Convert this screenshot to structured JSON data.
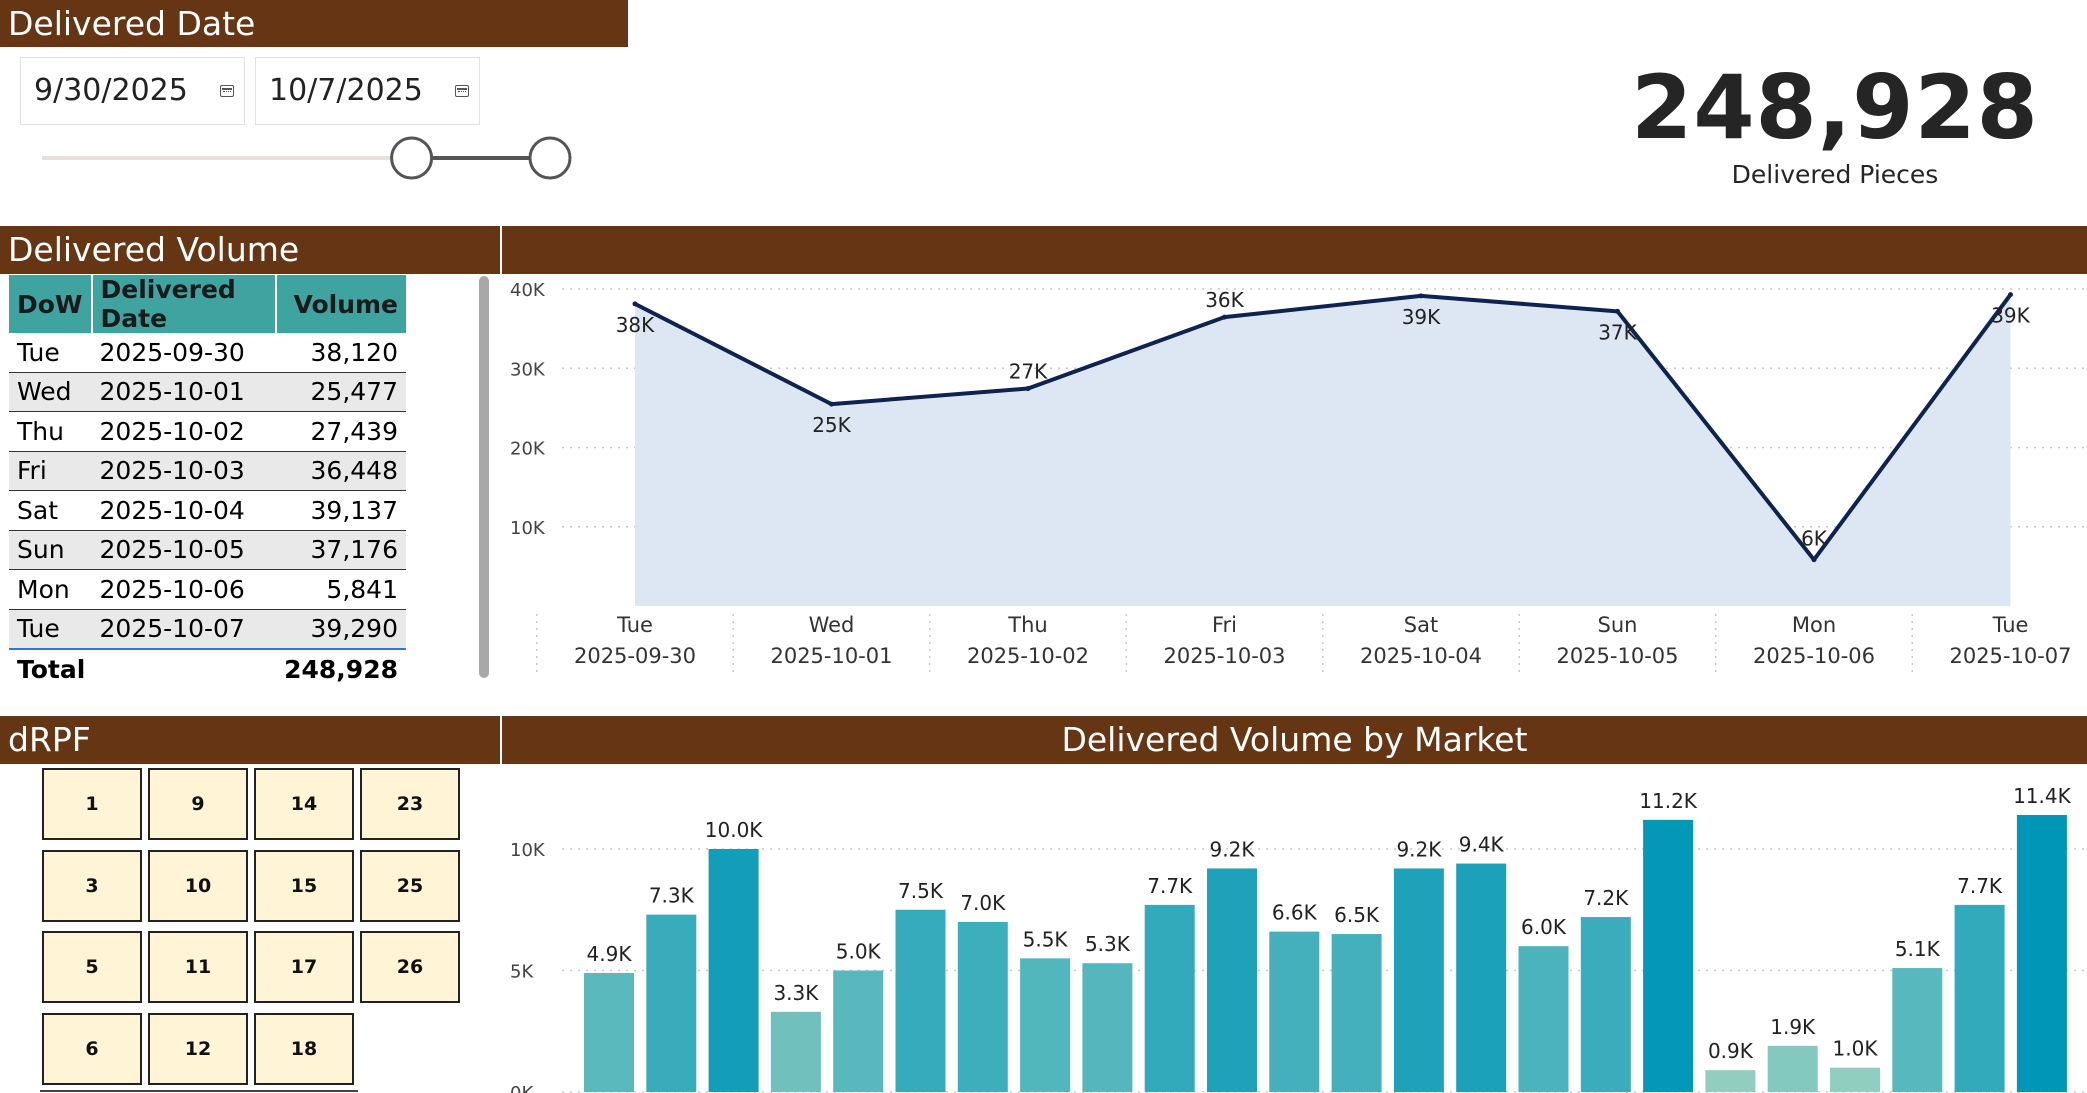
{
  "filter": {
    "title": "Delivered Date",
    "start_date": "9/30/2025",
    "end_date": "10/7/2025",
    "slider_start_fraction": 0.7,
    "slider_end_fraction": 1.0
  },
  "kpi": {
    "value": "248,928",
    "label": "Delivered Pieces"
  },
  "volume_section": {
    "title": "Delivered Volume"
  },
  "table": {
    "columns": [
      "DoW",
      "Delivered Date",
      "Volume"
    ],
    "rows": [
      [
        "Tue",
        "2025-09-30",
        "38,120"
      ],
      [
        "Wed",
        "2025-10-01",
        "25,477"
      ],
      [
        "Thu",
        "2025-10-02",
        "27,439"
      ],
      [
        "Fri",
        "2025-10-03",
        "36,448"
      ],
      [
        "Sat",
        "2025-10-04",
        "39,137"
      ],
      [
        "Sun",
        "2025-10-05",
        "37,176"
      ],
      [
        "Mon",
        "2025-10-06",
        "5,841"
      ],
      [
        "Tue",
        "2025-10-07",
        "39,290"
      ]
    ],
    "total_label": "Total",
    "total_value": "248,928"
  },
  "drpf": {
    "title": "dRPF",
    "buttons": [
      "1",
      "9",
      "14",
      "23",
      "3",
      "10",
      "15",
      "25",
      "5",
      "11",
      "17",
      "26",
      "6",
      "12",
      "18"
    ]
  },
  "market_section": {
    "title": "Delivered Volume by Market"
  },
  "colors": {
    "header_bg": "#653514",
    "line": "#0f2350",
    "area": "#dde7f3",
    "table_header": "#3fa3a0",
    "button_fill": "#fff4d6"
  },
  "chart_data": [
    {
      "type": "area",
      "categories": [
        "Tue",
        "Wed",
        "Thu",
        "Fri",
        "Sat",
        "Sun",
        "Mon",
        "Tue"
      ],
      "category_dates": [
        "2025-09-30",
        "2025-10-01",
        "2025-10-02",
        "2025-10-03",
        "2025-10-04",
        "2025-10-05",
        "2025-10-06",
        "2025-10-07"
      ],
      "values": [
        38120,
        25477,
        27439,
        36448,
        39137,
        37176,
        5841,
        39290
      ],
      "data_labels": [
        "38K",
        "25K",
        "27K",
        "36K",
        "39K",
        "37K",
        "6K",
        "39K"
      ],
      "yticks": [
        "10K",
        "20K",
        "30K",
        "40K"
      ],
      "ytick_values": [
        10000,
        20000,
        30000,
        40000
      ],
      "ylim": [
        0,
        40000
      ],
      "grid": true
    },
    {
      "type": "bar",
      "title": "Delivered Volume by Market",
      "values": [
        4.9,
        7.3,
        10.0,
        3.3,
        5.0,
        7.5,
        7.0,
        5.5,
        5.3,
        7.7,
        9.2,
        6.6,
        6.5,
        9.2,
        9.4,
        6.0,
        7.2,
        11.2,
        0.9,
        1.9,
        1.0,
        5.1,
        7.7,
        11.4
      ],
      "data_labels": [
        "4.9K",
        "7.3K",
        "10.0K",
        "3.3K",
        "5.0K",
        "7.5K",
        "7.0K",
        "5.5K",
        "5.3K",
        "7.7K",
        "9.2K",
        "6.6K",
        "6.5K",
        "9.2K",
        "9.4K",
        "6.0K",
        "7.2K",
        "11.2K",
        "0.9K",
        "1.9K",
        "1.0K",
        "5.1K",
        "7.7K",
        "11.4K"
      ],
      "value_unit": "K",
      "yticks": [
        "0K",
        "5K",
        "10K"
      ],
      "ytick_values": [
        0,
        5,
        10
      ],
      "ylim": [
        0,
        12
      ],
      "grid": true
    }
  ]
}
